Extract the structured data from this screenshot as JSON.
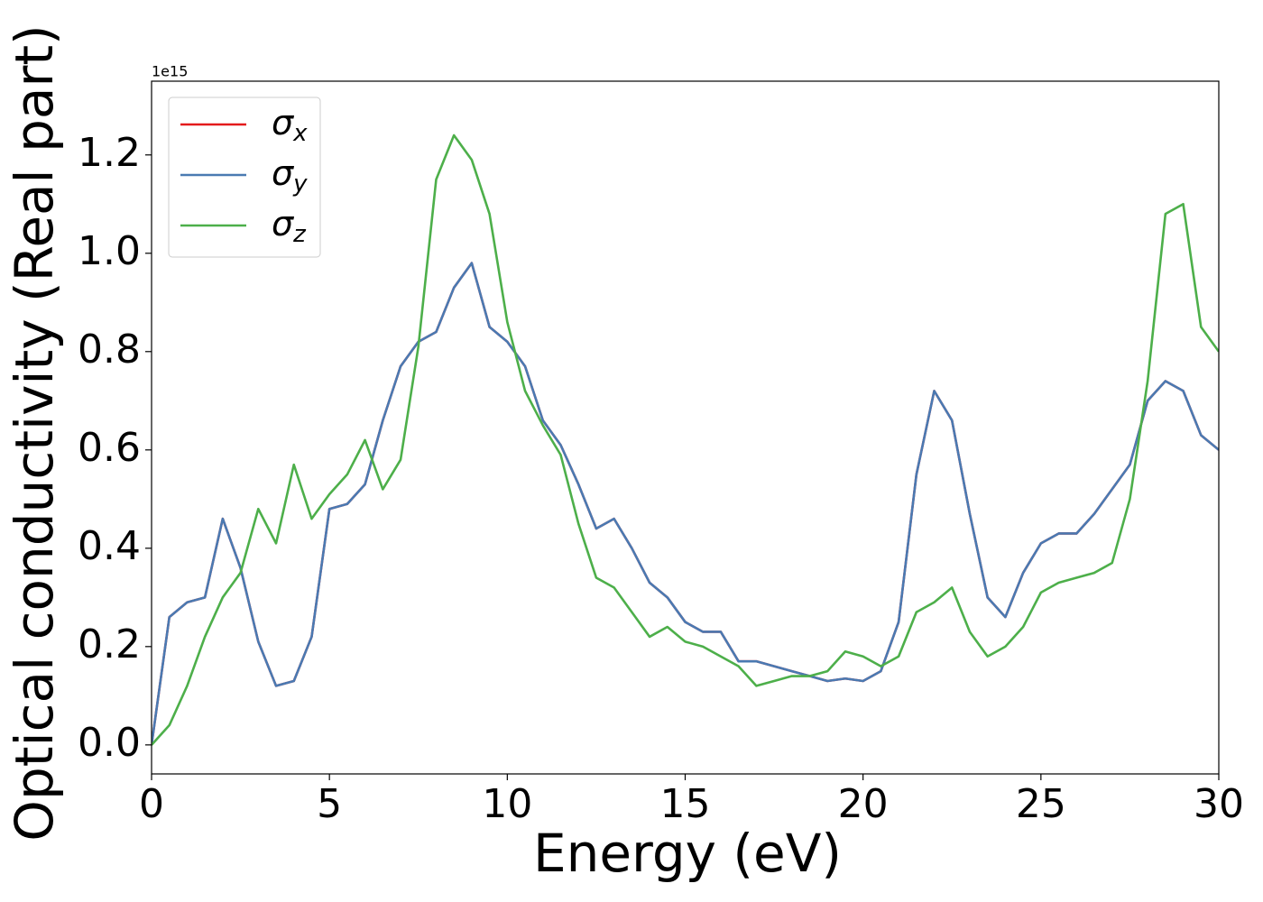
{
  "chart_data": {
    "type": "line",
    "xlabel": "Energy (eV)",
    "ylabel": "Optical conductivity (Real part)",
    "offset_text": "1e15",
    "x": [
      0,
      0.5,
      1,
      1.5,
      2,
      2.5,
      3,
      3.5,
      4,
      4.5,
      5,
      5.5,
      6,
      6.5,
      7,
      7.5,
      8,
      8.5,
      9,
      9.5,
      10,
      10.5,
      11,
      11.5,
      12,
      12.5,
      13,
      13.5,
      14,
      14.5,
      15,
      15.5,
      16,
      16.5,
      17,
      17.5,
      18,
      18.5,
      19,
      19.5,
      20,
      20.5,
      21,
      21.5,
      22,
      22.5,
      23,
      23.5,
      24,
      24.5,
      25,
      25.5,
      26,
      26.5,
      27,
      27.5,
      28,
      28.5,
      29,
      29.5,
      30
    ],
    "series": [
      {
        "name": "σx",
        "color": "#e41a1c",
        "values": [
          0,
          0.26,
          0.29,
          0.3,
          0.46,
          0.36,
          0.21,
          0.12,
          0.13,
          0.22,
          0.48,
          0.49,
          0.53,
          0.66,
          0.77,
          0.82,
          0.84,
          0.93,
          0.98,
          0.85,
          0.82,
          0.77,
          0.66,
          0.61,
          0.53,
          0.44,
          0.46,
          0.4,
          0.33,
          0.3,
          0.25,
          0.23,
          0.23,
          0.17,
          0.17,
          0.16,
          0.15,
          0.14,
          0.13,
          0.135,
          0.13,
          0.15,
          0.25,
          0.55,
          0.72,
          0.66,
          0.47,
          0.3,
          0.26,
          0.35,
          0.41,
          0.43,
          0.43,
          0.47,
          0.52,
          0.57,
          0.7,
          0.74,
          0.72,
          0.63,
          0.6
        ]
      },
      {
        "name": "σy",
        "color": "#4a7ab2",
        "values": [
          0,
          0.26,
          0.29,
          0.3,
          0.46,
          0.36,
          0.21,
          0.12,
          0.13,
          0.22,
          0.48,
          0.49,
          0.53,
          0.66,
          0.77,
          0.82,
          0.84,
          0.93,
          0.98,
          0.85,
          0.82,
          0.77,
          0.66,
          0.61,
          0.53,
          0.44,
          0.46,
          0.4,
          0.33,
          0.3,
          0.25,
          0.23,
          0.23,
          0.17,
          0.17,
          0.16,
          0.15,
          0.14,
          0.13,
          0.135,
          0.13,
          0.15,
          0.25,
          0.55,
          0.72,
          0.66,
          0.47,
          0.3,
          0.26,
          0.35,
          0.41,
          0.43,
          0.43,
          0.47,
          0.52,
          0.57,
          0.7,
          0.74,
          0.72,
          0.63,
          0.6
        ]
      },
      {
        "name": "σz",
        "color": "#4daf4a",
        "values": [
          0,
          0.04,
          0.12,
          0.22,
          0.3,
          0.35,
          0.48,
          0.41,
          0.57,
          0.46,
          0.51,
          0.55,
          0.62,
          0.52,
          0.58,
          0.81,
          1.15,
          1.24,
          1.19,
          1.08,
          0.86,
          0.72,
          0.65,
          0.59,
          0.45,
          0.34,
          0.32,
          0.27,
          0.22,
          0.24,
          0.21,
          0.2,
          0.18,
          0.16,
          0.12,
          0.13,
          0.14,
          0.14,
          0.15,
          0.19,
          0.18,
          0.16,
          0.18,
          0.27,
          0.29,
          0.32,
          0.23,
          0.18,
          0.2,
          0.24,
          0.31,
          0.33,
          0.34,
          0.35,
          0.37,
          0.5,
          0.74,
          1.08,
          1.1,
          0.85,
          0.8
        ]
      }
    ],
    "xlim": [
      0,
      30
    ],
    "xticks": [
      0,
      5,
      10,
      15,
      20,
      25,
      30
    ],
    "ylim": [
      -0.059,
      1.35
    ],
    "yticks": [
      {
        "value": 0,
        "label": "0.0"
      },
      0.2,
      0.4,
      0.6,
      0.8,
      {
        "value": 1,
        "label": "1.0"
      },
      1.2
    ],
    "legend": "upper left",
    "grid": false
  }
}
